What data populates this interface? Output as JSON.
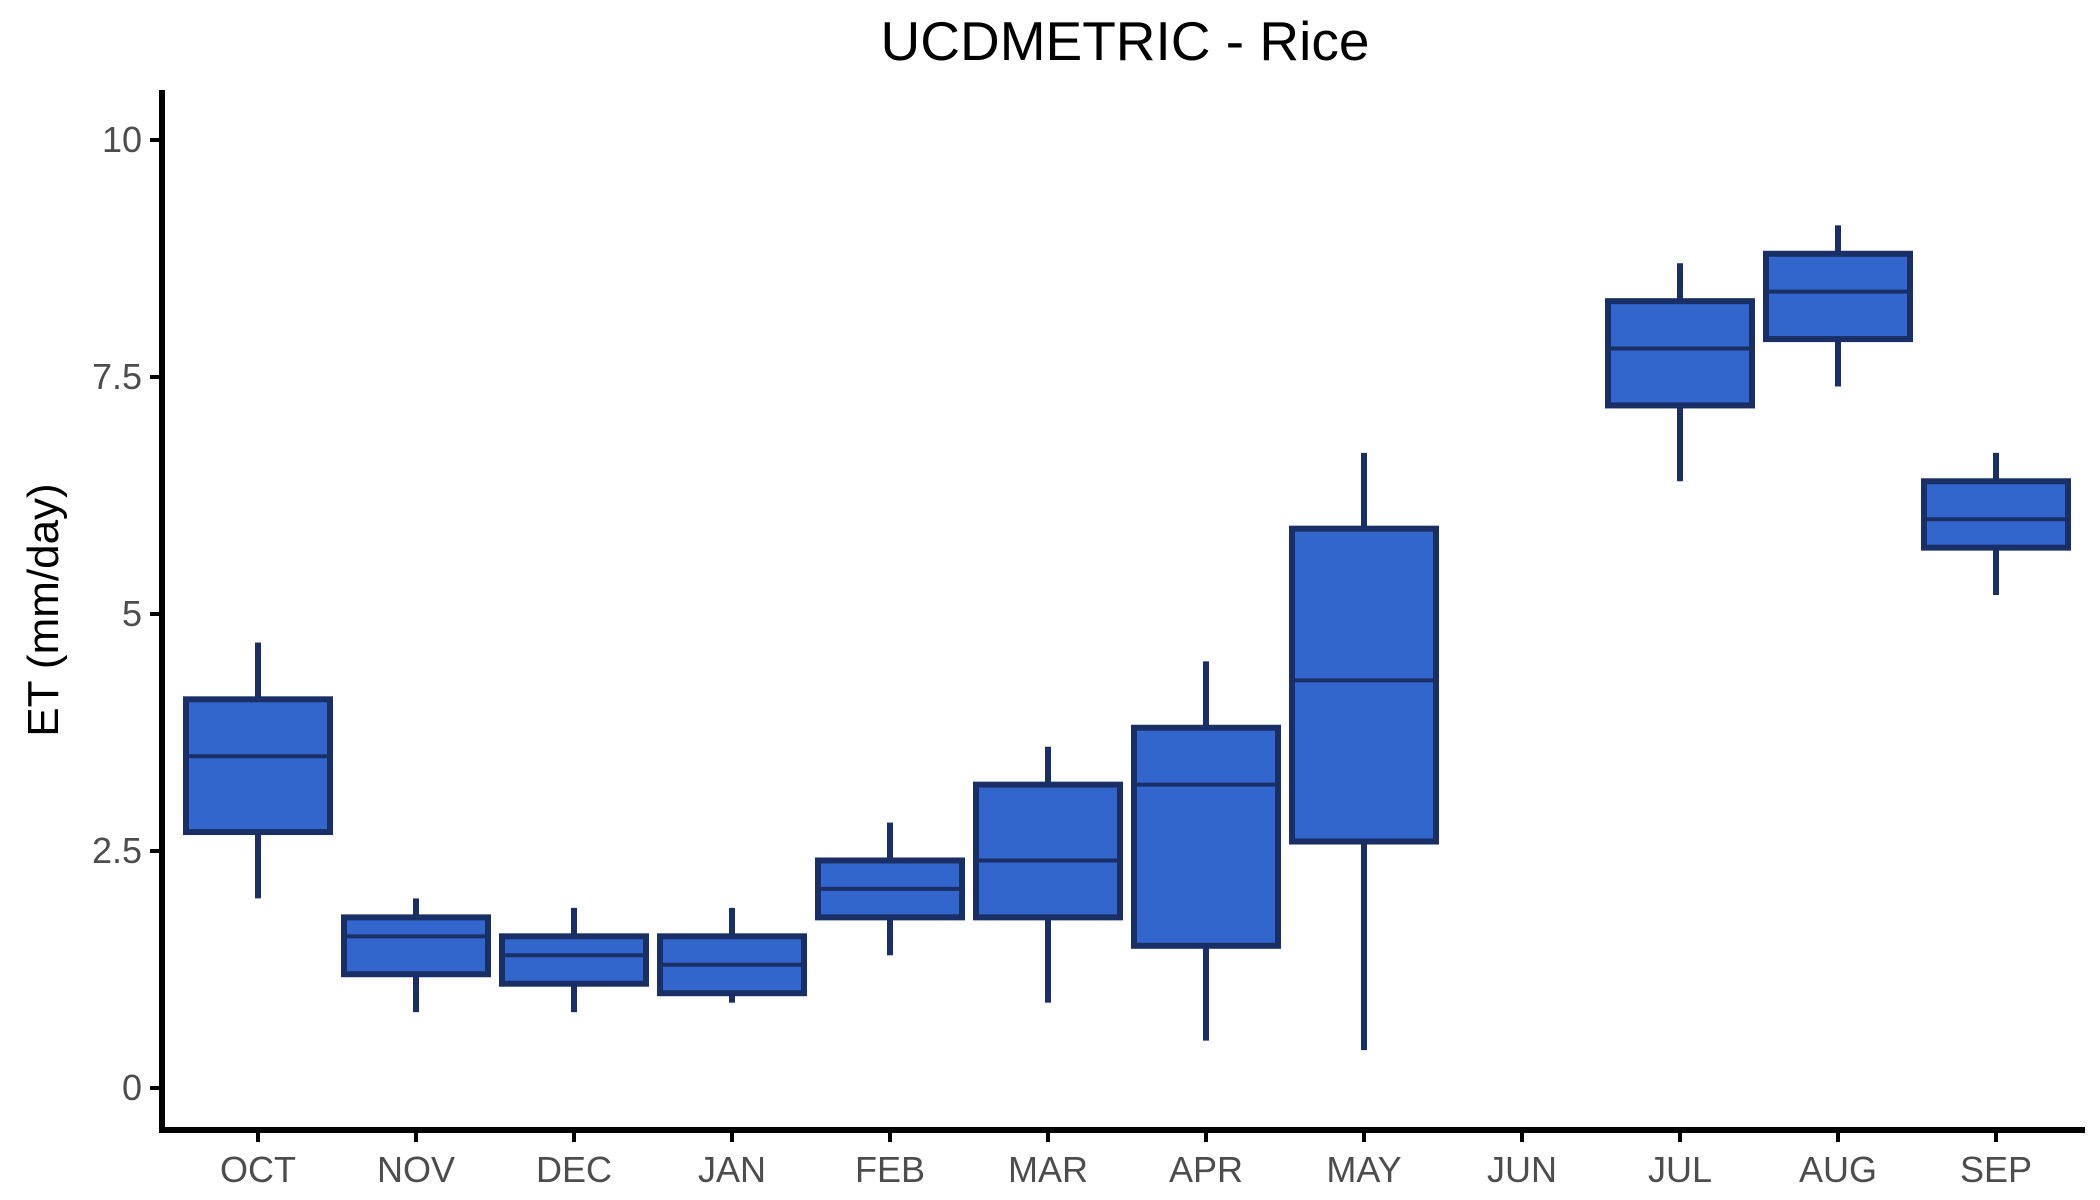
{
  "chart_data": {
    "type": "boxplot",
    "title": "UCDMETRIC - Rice",
    "xlabel": "",
    "ylabel": "ET (mm/day)",
    "ylim": [
      -0.5,
      10.5
    ],
    "yticks": [
      0,
      2.5,
      5,
      7.5,
      10
    ],
    "ytick_labels": [
      "0",
      "2.5",
      "5",
      "7.5",
      "10"
    ],
    "categories": [
      "OCT",
      "NOV",
      "DEC",
      "JAN",
      "FEB",
      "MAR",
      "APR",
      "MAY",
      "JUN",
      "JUL",
      "AUG",
      "SEP"
    ],
    "boxes": [
      {
        "category": "OCT",
        "min": 2.0,
        "q1": 2.7,
        "median": 3.5,
        "q3": 4.1,
        "max": 4.7
      },
      {
        "category": "NOV",
        "min": 0.8,
        "q1": 1.2,
        "median": 1.6,
        "q3": 1.8,
        "max": 2.0
      },
      {
        "category": "DEC",
        "min": 0.8,
        "q1": 1.1,
        "median": 1.4,
        "q3": 1.6,
        "max": 1.9
      },
      {
        "category": "JAN",
        "min": 0.9,
        "q1": 1.0,
        "median": 1.3,
        "q3": 1.6,
        "max": 1.9
      },
      {
        "category": "FEB",
        "min": 1.4,
        "q1": 1.8,
        "median": 2.1,
        "q3": 2.4,
        "max": 2.8
      },
      {
        "category": "MAR",
        "min": 0.9,
        "q1": 1.8,
        "median": 2.4,
        "q3": 3.2,
        "max": 3.6
      },
      {
        "category": "APR",
        "min": 0.5,
        "q1": 1.5,
        "median": 3.2,
        "q3": 3.8,
        "max": 4.5
      },
      {
        "category": "MAY",
        "min": 0.4,
        "q1": 2.6,
        "median": 4.3,
        "q3": 5.9,
        "max": 6.7
      },
      {
        "category": "JUL",
        "min": 6.4,
        "q1": 7.2,
        "median": 7.8,
        "q3": 8.3,
        "max": 8.7
      },
      {
        "category": "AUG",
        "min": 7.4,
        "q1": 7.9,
        "median": 8.4,
        "q3": 8.8,
        "max": 9.1
      },
      {
        "category": "SEP",
        "min": 5.2,
        "q1": 5.7,
        "median": 6.0,
        "q3": 6.4,
        "max": 6.7
      }
    ],
    "colors": {
      "box_fill": "#3366cc",
      "box_stroke": "#1a2f66",
      "axis": "#000000",
      "tick_text": "#4d4d4d"
    },
    "grid": false,
    "legend": "none"
  }
}
